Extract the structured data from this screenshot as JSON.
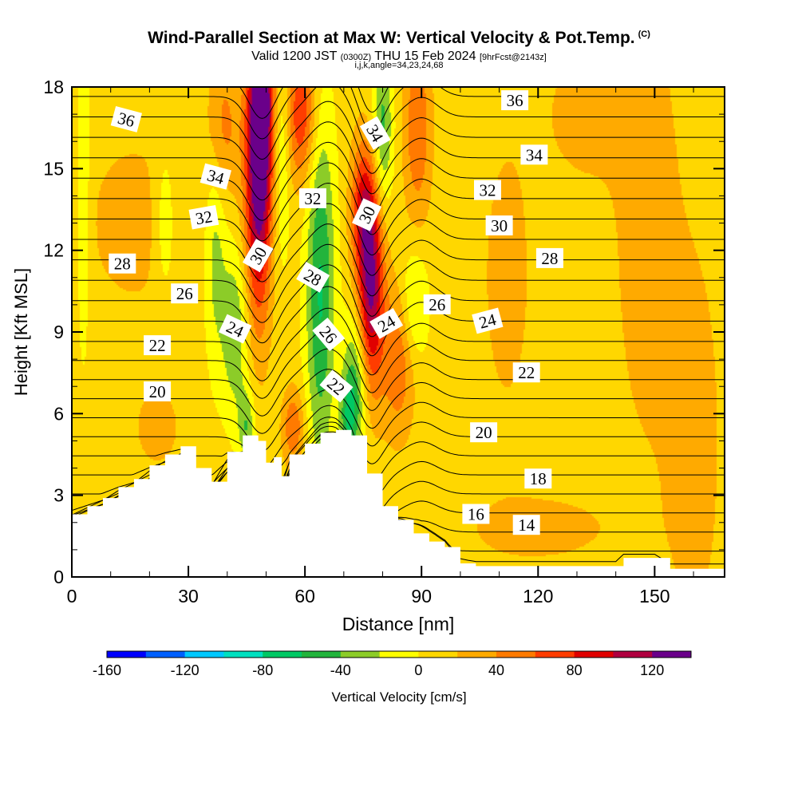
{
  "header": {
    "title": "Wind-Parallel Section at Max W: Vertical Velocity & Pot.Temp.",
    "copyright": "(C)",
    "valid_prefix": "Valid 1200 JST",
    "valid_utc": "(0300Z)",
    "valid_date": "THU 15 Feb 2024",
    "forecast": "[9hrFcst@2143z]",
    "params": "i,j,k,angle=34,23,24,68"
  },
  "chart_data": {
    "type": "heatmap",
    "xlabel": "Distance [nm]",
    "ylabel": "Height [Kft MSL]",
    "xlim": [
      0,
      168
    ],
    "ylim": [
      0,
      18
    ],
    "x_ticks": [
      0,
      30,
      60,
      90,
      120,
      150
    ],
    "y_ticks": [
      0,
      3,
      6,
      9,
      12,
      15,
      18
    ],
    "colorbar": {
      "label": "Vertical Velocity [cm/s]",
      "tick_values": [
        -160,
        -120,
        -80,
        -40,
        0,
        40,
        80,
        120
      ],
      "range": [
        -160,
        140
      ],
      "bin_width": 20,
      "colors": [
        "#0000ff",
        "#0060ff",
        "#00c8ff",
        "#00e0c0",
        "#00c864",
        "#22b43c",
        "#8ccc28",
        "#ffff00",
        "#ffd700",
        "#ffaa00",
        "#ff7a00",
        "#ff3c00",
        "#e00000",
        "#b00040",
        "#6a008a"
      ]
    },
    "terrain": [
      [
        0,
        2.3
      ],
      [
        4,
        2.6
      ],
      [
        8,
        2.9
      ],
      [
        12,
        3.3
      ],
      [
        16,
        3.6
      ],
      [
        20,
        4.1
      ],
      [
        24,
        4.5
      ],
      [
        28,
        4.8
      ],
      [
        32,
        4.0
      ],
      [
        36,
        3.5
      ],
      [
        40,
        4.6
      ],
      [
        44,
        5.2
      ],
      [
        48,
        5.0
      ],
      [
        50,
        4.2
      ],
      [
        52,
        4.4
      ],
      [
        54,
        3.7
      ],
      [
        56,
        4.5
      ],
      [
        60,
        4.9
      ],
      [
        64,
        5.3
      ],
      [
        68,
        5.4
      ],
      [
        72,
        5.2
      ],
      [
        76,
        3.8
      ],
      [
        80,
        2.6
      ],
      [
        84,
        2.1
      ],
      [
        88,
        1.6
      ],
      [
        92,
        1.3
      ],
      [
        96,
        1.1
      ],
      [
        100,
        0.5
      ],
      [
        104,
        0.4
      ],
      [
        120,
        0.4
      ],
      [
        140,
        0.4
      ],
      [
        142,
        0.7
      ],
      [
        150,
        0.7
      ],
      [
        154,
        0.3
      ],
      [
        168,
        0.3
      ]
    ],
    "velocity_features": [
      {
        "x": 48,
        "z": 14.5,
        "value": 120,
        "sx": 2.4,
        "sz": 3.6
      },
      {
        "x": 49,
        "z": 18.0,
        "value": 100,
        "sx": 2.2,
        "sz": 2.5
      },
      {
        "x": 77,
        "z": 10.5,
        "value": 110,
        "sx": 2.3,
        "sz": 2.6
      },
      {
        "x": 75,
        "z": 13.5,
        "value": 70,
        "sx": 2.3,
        "sz": 1.8
      },
      {
        "x": 84,
        "z": 8.0,
        "value": 50,
        "sx": 3.0,
        "sz": 2.0
      },
      {
        "x": 59,
        "z": 17.0,
        "value": 70,
        "sx": 2.8,
        "sz": 1.8
      },
      {
        "x": 89,
        "z": 16.5,
        "value": 50,
        "sx": 2.5,
        "sz": 2.5
      },
      {
        "x": 39,
        "z": 16.5,
        "value": 40,
        "sx": 3.0,
        "sz": 2.0
      },
      {
        "x": 16,
        "z": 13.0,
        "value": 20,
        "sx": 10.0,
        "sz": 2.5
      },
      {
        "x": 57,
        "z": 5.5,
        "value": 50,
        "sx": 2.0,
        "sz": 1.0
      },
      {
        "x": 22,
        "z": 5.5,
        "value": 25,
        "sx": 4.0,
        "sz": 1.0
      },
      {
        "x": 112,
        "z": 11.0,
        "value": 20,
        "sx": 5.0,
        "sz": 4.0
      },
      {
        "x": 132,
        "z": 17.0,
        "value": 20,
        "sx": 8.0,
        "sz": 2.0
      },
      {
        "x": 148,
        "z": 13.0,
        "value": 25,
        "sx": 6.0,
        "sz": 6.0
      },
      {
        "x": 160,
        "z": 5.0,
        "value": 25,
        "sx": 5.0,
        "sz": 5.0
      },
      {
        "x": 120,
        "z": 1.8,
        "value": 20,
        "sx": 15.0,
        "sz": 1.0
      },
      {
        "x": 64,
        "z": 10.5,
        "value": -70,
        "sx": 2.6,
        "sz": 4.5
      },
      {
        "x": 73,
        "z": 7.0,
        "value": -60,
        "sx": 2.2,
        "sz": 1.8
      },
      {
        "x": 42,
        "z": 9.0,
        "value": -45,
        "sx": 2.4,
        "sz": 2.2
      },
      {
        "x": 37,
        "z": 12.0,
        "value": -35,
        "sx": 2.0,
        "sz": 3.0
      },
      {
        "x": 54,
        "z": 16.0,
        "value": -35,
        "sx": 1.6,
        "sz": 3.0
      },
      {
        "x": 80,
        "z": 16.5,
        "value": -55,
        "sx": 1.8,
        "sz": 2.0
      },
      {
        "x": 88,
        "z": 10.0,
        "value": -40,
        "sx": 2.5,
        "sz": 1.5
      },
      {
        "x": 24,
        "z": 13.0,
        "value": -30,
        "sx": 2.0,
        "sz": 2.0
      },
      {
        "x": 3,
        "z": 14.0,
        "value": -30,
        "sx": 1.2,
        "sz": 4.0
      },
      {
        "x": 45,
        "z": 5.5,
        "value": -45,
        "sx": 1.5,
        "sz": 1.0
      },
      {
        "x": 71,
        "z": 5.8,
        "value": -45,
        "sx": 1.5,
        "sz": 1.0
      }
    ],
    "isentropes": {
      "base": 14,
      "step": 1,
      "count": 26,
      "labels": [
        {
          "text": "36",
          "x": 14,
          "z": 16.8,
          "angle": 15
        },
        {
          "text": "34",
          "x": 37,
          "z": 14.7,
          "angle": 15
        },
        {
          "text": "32",
          "x": 34,
          "z": 13.2,
          "angle": -10
        },
        {
          "text": "30",
          "x": 48,
          "z": 11.8,
          "angle": -60
        },
        {
          "text": "28",
          "x": 13,
          "z": 11.5,
          "angle": 0
        },
        {
          "text": "26",
          "x": 29,
          "z": 10.4,
          "angle": 0
        },
        {
          "text": "24",
          "x": 42,
          "z": 9.1,
          "angle": 25
        },
        {
          "text": "22",
          "x": 22,
          "z": 8.5,
          "angle": 0
        },
        {
          "text": "20",
          "x": 22,
          "z": 6.8,
          "angle": 0
        },
        {
          "text": "32",
          "x": 62,
          "z": 13.9,
          "angle": 0
        },
        {
          "text": "34",
          "x": 78,
          "z": 16.3,
          "angle": 60
        },
        {
          "text": "30",
          "x": 76,
          "z": 13.3,
          "angle": -65
        },
        {
          "text": "28",
          "x": 62,
          "z": 11.0,
          "angle": 30
        },
        {
          "text": "26",
          "x": 66,
          "z": 8.9,
          "angle": 50
        },
        {
          "text": "24",
          "x": 81,
          "z": 9.3,
          "angle": -30
        },
        {
          "text": "22",
          "x": 68,
          "z": 7.0,
          "angle": 40
        },
        {
          "text": "26",
          "x": 94,
          "z": 10.0,
          "angle": 0
        },
        {
          "text": "24",
          "x": 107,
          "z": 9.4,
          "angle": -15
        },
        {
          "text": "22",
          "x": 117,
          "z": 7.5,
          "angle": 0
        },
        {
          "text": "20",
          "x": 106,
          "z": 5.3,
          "angle": 0
        },
        {
          "text": "18",
          "x": 120,
          "z": 3.6,
          "angle": 0
        },
        {
          "text": "16",
          "x": 104,
          "z": 2.3,
          "angle": 0
        },
        {
          "text": "14",
          "x": 117,
          "z": 1.9,
          "angle": 0
        },
        {
          "text": "28",
          "x": 123,
          "z": 11.7,
          "angle": 0
        },
        {
          "text": "30",
          "x": 110,
          "z": 12.9,
          "angle": 0
        },
        {
          "text": "32",
          "x": 107,
          "z": 14.2,
          "angle": 0
        },
        {
          "text": "34",
          "x": 119,
          "z": 15.5,
          "angle": 0
        },
        {
          "text": "36",
          "x": 114,
          "z": 17.5,
          "angle": 0
        }
      ]
    }
  }
}
